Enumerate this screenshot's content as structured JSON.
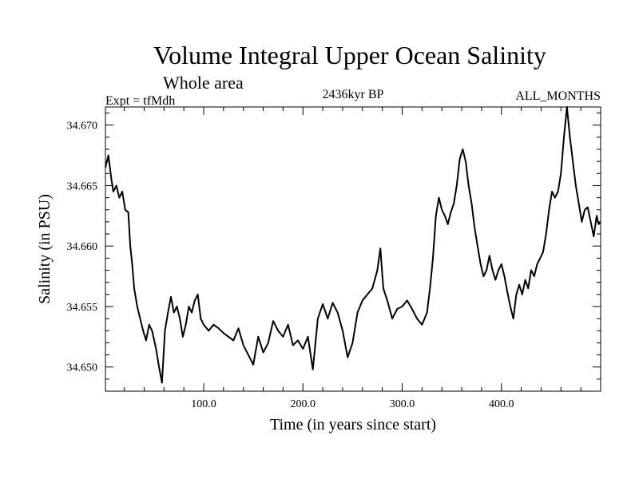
{
  "chart_data": {
    "type": "line",
    "title": "Volume Integral Upper Ocean Salinity",
    "subtitle": "Whole area",
    "left_label": "Expt = tfMdh",
    "center_label": "2436kyr BP",
    "right_label": "ALL_MONTHS",
    "xlabel": "Time (in years since start)",
    "ylabel": "Salinity (in PSU)",
    "xlim": [
      1,
      500
    ],
    "ylim": [
      34.648,
      34.6715
    ],
    "x_ticks": [
      100,
      200,
      300,
      400
    ],
    "x_tick_labels": [
      "100.0",
      "200.0",
      "300.0",
      "400.0"
    ],
    "y_ticks": [
      34.65,
      34.655,
      34.66,
      34.665,
      34.67
    ],
    "y_tick_labels": [
      "34.650",
      "34.655",
      "34.660",
      "34.665",
      "34.670"
    ],
    "series": [
      {
        "name": "Salinity",
        "color": "#000000",
        "points": [
          [
            1,
            34.6665
          ],
          [
            4,
            34.6675
          ],
          [
            7,
            34.6655
          ],
          [
            9,
            34.6645
          ],
          [
            12,
            34.665
          ],
          [
            15,
            34.664
          ],
          [
            18,
            34.6645
          ],
          [
            21,
            34.663
          ],
          [
            24,
            34.6628
          ],
          [
            26,
            34.66
          ],
          [
            28,
            34.6585
          ],
          [
            30,
            34.6565
          ],
          [
            33,
            34.655
          ],
          [
            36,
            34.654
          ],
          [
            39,
            34.653
          ],
          [
            42,
            34.6522
          ],
          [
            45,
            34.6535
          ],
          [
            48,
            34.653
          ],
          [
            52,
            34.6515
          ],
          [
            55,
            34.65
          ],
          [
            58,
            34.6487
          ],
          [
            61,
            34.653
          ],
          [
            64,
            34.6545
          ],
          [
            67,
            34.6558
          ],
          [
            70,
            34.6545
          ],
          [
            73,
            34.655
          ],
          [
            76,
            34.654
          ],
          [
            79,
            34.6525
          ],
          [
            82,
            34.6535
          ],
          [
            85,
            34.655
          ],
          [
            88,
            34.6545
          ],
          [
            91,
            34.6555
          ],
          [
            94,
            34.656
          ],
          [
            97,
            34.654
          ],
          [
            100,
            34.6535
          ],
          [
            105,
            34.653
          ],
          [
            110,
            34.6535
          ],
          [
            115,
            34.6532
          ],
          [
            120,
            34.6528
          ],
          [
            125,
            34.6525
          ],
          [
            130,
            34.6522
          ],
          [
            135,
            34.6532
          ],
          [
            140,
            34.6518
          ],
          [
            145,
            34.651
          ],
          [
            150,
            34.6502
          ],
          [
            155,
            34.6525
          ],
          [
            160,
            34.6512
          ],
          [
            165,
            34.652
          ],
          [
            170,
            34.6538
          ],
          [
            175,
            34.653
          ],
          [
            180,
            34.6525
          ],
          [
            185,
            34.6535
          ],
          [
            190,
            34.6518
          ],
          [
            195,
            34.6522
          ],
          [
            200,
            34.6515
          ],
          [
            205,
            34.6525
          ],
          [
            210,
            34.6498
          ],
          [
            215,
            34.654
          ],
          [
            220,
            34.6552
          ],
          [
            225,
            34.654
          ],
          [
            230,
            34.6553
          ],
          [
            235,
            34.6545
          ],
          [
            240,
            34.653
          ],
          [
            245,
            34.6508
          ],
          [
            250,
            34.652
          ],
          [
            255,
            34.6545
          ],
          [
            260,
            34.6555
          ],
          [
            265,
            34.656
          ],
          [
            270,
            34.6565
          ],
          [
            275,
            34.658
          ],
          [
            278,
            34.6598
          ],
          [
            281,
            34.6565
          ],
          [
            285,
            34.6555
          ],
          [
            290,
            34.654
          ],
          [
            295,
            34.6548
          ],
          [
            300,
            34.655
          ],
          [
            305,
            34.6555
          ],
          [
            310,
            34.6548
          ],
          [
            315,
            34.654
          ],
          [
            320,
            34.6535
          ],
          [
            325,
            34.6545
          ],
          [
            328,
            34.6565
          ],
          [
            331,
            34.659
          ],
          [
            334,
            34.6625
          ],
          [
            337,
            34.664
          ],
          [
            340,
            34.663
          ],
          [
            343,
            34.6625
          ],
          [
            346,
            34.6618
          ],
          [
            349,
            34.6628
          ],
          [
            352,
            34.6635
          ],
          [
            355,
            34.665
          ],
          [
            358,
            34.6672
          ],
          [
            361,
            34.668
          ],
          [
            364,
            34.667
          ],
          [
            367,
            34.665
          ],
          [
            370,
            34.6635
          ],
          [
            373,
            34.6615
          ],
          [
            376,
            34.66
          ],
          [
            379,
            34.6585
          ],
          [
            382,
            34.6575
          ],
          [
            385,
            34.658
          ],
          [
            388,
            34.6592
          ],
          [
            391,
            34.658
          ],
          [
            394,
            34.6572
          ],
          [
            397,
            34.658
          ],
          [
            400,
            34.6585
          ],
          [
            403,
            34.6575
          ],
          [
            406,
            34.6562
          ],
          [
            409,
            34.655
          ],
          [
            412,
            34.654
          ],
          [
            415,
            34.656
          ],
          [
            418,
            34.6568
          ],
          [
            421,
            34.656
          ],
          [
            424,
            34.6572
          ],
          [
            427,
            34.6565
          ],
          [
            430,
            34.658
          ],
          [
            433,
            34.6575
          ],
          [
            436,
            34.6585
          ],
          [
            439,
            34.659
          ],
          [
            442,
            34.6595
          ],
          [
            445,
            34.661
          ],
          [
            448,
            34.663
          ],
          [
            451,
            34.6645
          ],
          [
            454,
            34.664
          ],
          [
            457,
            34.6645
          ],
          [
            460,
            34.666
          ],
          [
            463,
            34.669
          ],
          [
            466,
            34.6715
          ],
          [
            469,
            34.669
          ],
          [
            472,
            34.667
          ],
          [
            475,
            34.665
          ],
          [
            478,
            34.6635
          ],
          [
            481,
            34.662
          ],
          [
            484,
            34.663
          ],
          [
            487,
            34.6632
          ],
          [
            490,
            34.662
          ],
          [
            493,
            34.6608
          ],
          [
            496,
            34.6625
          ],
          [
            498,
            34.6618
          ],
          [
            500,
            34.662
          ]
        ]
      }
    ]
  }
}
